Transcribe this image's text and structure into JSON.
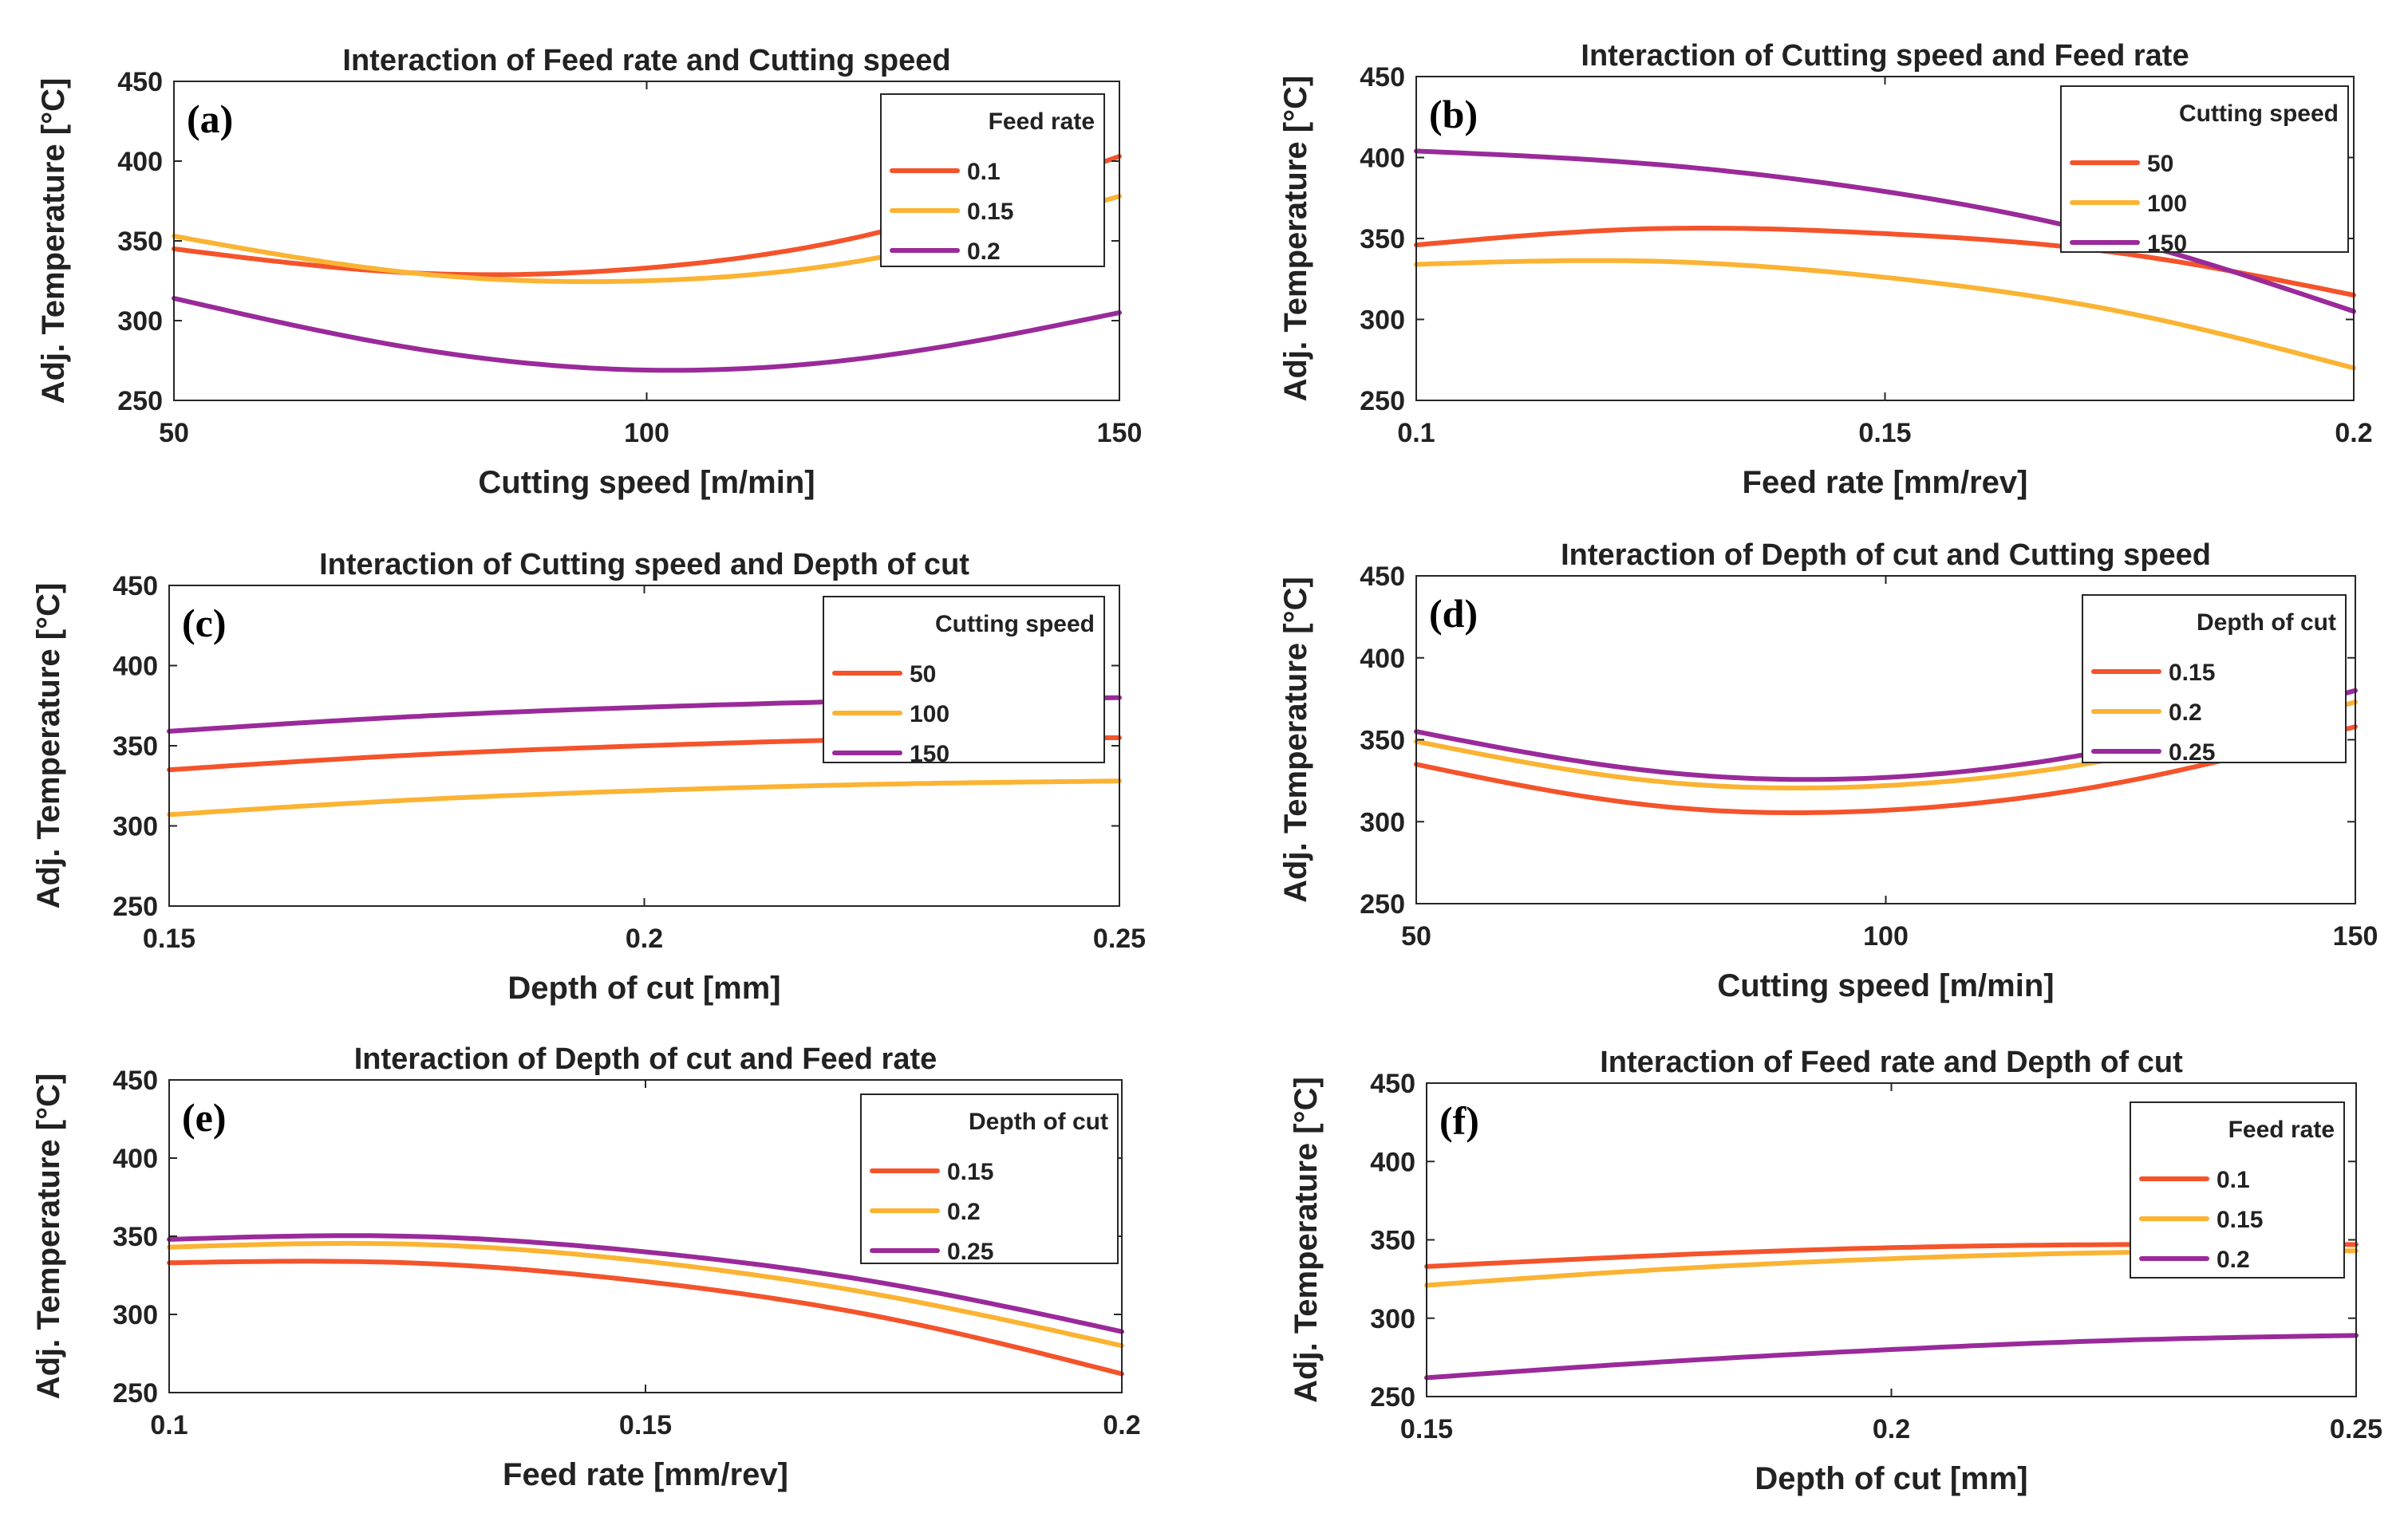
{
  "colors": {
    "series1": "#F4532B",
    "series2": "#FBB333",
    "series3": "#9A2A9A",
    "axis": "#262626"
  },
  "chart_data": [
    {
      "type": "line",
      "panel": "(a)",
      "title": "Interaction of Feed rate and Cutting speed",
      "xlabel": "Cutting speed [m/min]",
      "ylabel": "Adj. Temperature [°C]",
      "xlim": [
        50,
        150
      ],
      "ylim": [
        250,
        450
      ],
      "xticks": [
        50,
        100,
        150
      ],
      "xtick_labels": [
        "50",
        "100",
        "150"
      ],
      "yticks": [
        250,
        300,
        350,
        400,
        450
      ],
      "ytick_labels": [
        "250",
        "300",
        "350",
        "400",
        "450"
      ],
      "legend_title": "Feed rate",
      "legend_position": "top-right",
      "series": [
        {
          "name": "0.1",
          "x": [
            50,
            75,
            100,
            125,
            150
          ],
          "values": [
            345,
            330,
            333,
            356,
            403
          ]
        },
        {
          "name": "0.15",
          "x": [
            50,
            75,
            100,
            125,
            150
          ],
          "values": [
            353,
            330,
            325,
            340,
            378
          ]
        },
        {
          "name": "0.2",
          "x": [
            50,
            75,
            100,
            125,
            150
          ],
          "values": [
            314,
            283,
            269,
            278,
            305
          ]
        }
      ]
    },
    {
      "type": "line",
      "panel": "(b)",
      "title": "Interaction of Cutting speed and Feed rate",
      "xlabel": "Feed rate [mm/rev]",
      "ylabel": "Adj. Temperature [°C]",
      "xlim": [
        0.1,
        0.2
      ],
      "ylim": [
        250,
        450
      ],
      "xticks": [
        0.1,
        0.15,
        0.2
      ],
      "xtick_labels": [
        "0.1",
        "0.15",
        "0.2"
      ],
      "yticks": [
        250,
        300,
        350,
        400,
        450
      ],
      "ytick_labels": [
        "250",
        "300",
        "350",
        "400",
        "450"
      ],
      "legend_title": "Cutting speed",
      "legend_position": "top-right",
      "series": [
        {
          "name": "50",
          "x": [
            0.1,
            0.125,
            0.15,
            0.175,
            0.2
          ],
          "values": [
            346,
            356,
            353,
            341,
            315
          ]
        },
        {
          "name": "100",
          "x": [
            0.1,
            0.125,
            0.15,
            0.175,
            0.2
          ],
          "values": [
            334,
            336,
            326,
            305,
            270
          ]
        },
        {
          "name": "150",
          "x": [
            0.1,
            0.125,
            0.15,
            0.175,
            0.2
          ],
          "values": [
            404,
            396,
            379,
            350,
            305
          ]
        }
      ]
    },
    {
      "type": "line",
      "panel": "(c)",
      "title": "Interaction of Cutting speed and Depth of cut",
      "xlabel": "Depth of cut [mm]",
      "ylabel": "Adj. Temperature [°C]",
      "xlim": [
        0.15,
        0.25
      ],
      "ylim": [
        250,
        450
      ],
      "xticks": [
        0.15,
        0.2,
        0.25
      ],
      "xtick_labels": [
        "0.15",
        "0.2",
        "0.25"
      ],
      "yticks": [
        250,
        300,
        350,
        400,
        450
      ],
      "ytick_labels": [
        "250",
        "300",
        "350",
        "400",
        "450"
      ],
      "legend_title": "Cutting speed",
      "legend_position": "top-right",
      "series": [
        {
          "name": "50",
          "x": [
            0.15,
            0.175,
            0.2,
            0.225,
            0.25
          ],
          "values": [
            335,
            344,
            350,
            354,
            355
          ]
        },
        {
          "name": "100",
          "x": [
            0.15,
            0.175,
            0.2,
            0.225,
            0.25
          ],
          "values": [
            307,
            316,
            322,
            326,
            328
          ]
        },
        {
          "name": "150",
          "x": [
            0.15,
            0.175,
            0.2,
            0.225,
            0.25
          ],
          "values": [
            359,
            368,
            374,
            378,
            380
          ]
        }
      ]
    },
    {
      "type": "line",
      "panel": "(d)",
      "title": "Interaction of Depth of cut and Cutting speed",
      "xlabel": "Cutting speed [m/min]",
      "ylabel": "Adj. Temperature [°C]",
      "xlim": [
        50,
        150
      ],
      "ylim": [
        250,
        450
      ],
      "xticks": [
        50,
        100,
        150
      ],
      "xtick_labels": [
        "50",
        "100",
        "150"
      ],
      "yticks": [
        250,
        300,
        350,
        400,
        450
      ],
      "ytick_labels": [
        "250",
        "300",
        "350",
        "400",
        "450"
      ],
      "legend_title": "Depth of cut",
      "legend_position": "top-right",
      "series": [
        {
          "name": "0.15",
          "x": [
            50,
            75,
            100,
            125,
            150
          ],
          "values": [
            335,
            310,
            307,
            324,
            358
          ]
        },
        {
          "name": "0.2",
          "x": [
            50,
            75,
            100,
            125,
            150
          ],
          "values": [
            349,
            325,
            322,
            339,
            373
          ]
        },
        {
          "name": "0.25",
          "x": [
            50,
            75,
            100,
            125,
            150
          ],
          "values": [
            355,
            331,
            327,
            345,
            380
          ]
        }
      ]
    },
    {
      "type": "line",
      "panel": "(e)",
      "title": "Interaction of Depth of cut and Feed rate",
      "xlabel": "Feed rate [mm/rev]",
      "ylabel": "Adj. Temperature [°C]",
      "xlim": [
        0.1,
        0.2
      ],
      "ylim": [
        250,
        450
      ],
      "xticks": [
        0.1,
        0.15,
        0.2
      ],
      "xtick_labels": [
        "0.1",
        "0.15",
        "0.2"
      ],
      "yticks": [
        250,
        300,
        350,
        400,
        450
      ],
      "ytick_labels": [
        "250",
        "300",
        "350",
        "400",
        "450"
      ],
      "legend_title": "Depth of cut",
      "legend_position": "top-right",
      "series": [
        {
          "name": "0.15",
          "x": [
            0.1,
            0.125,
            0.15,
            0.175,
            0.2
          ],
          "values": [
            333,
            333,
            321,
            298,
            262
          ]
        },
        {
          "name": "0.2",
          "x": [
            0.1,
            0.125,
            0.15,
            0.175,
            0.2
          ],
          "values": [
            343,
            345,
            334,
            312,
            280
          ]
        },
        {
          "name": "0.25",
          "x": [
            0.1,
            0.125,
            0.15,
            0.175,
            0.2
          ],
          "values": [
            348,
            350,
            340,
            320,
            289
          ]
        }
      ]
    },
    {
      "type": "line",
      "panel": "(f)",
      "title": "Interaction of Feed rate and Depth of cut",
      "xlabel": "Depth of cut [mm]",
      "ylabel": "Adj. Temperature [°C]",
      "xlim": [
        0.15,
        0.25
      ],
      "ylim": [
        250,
        450
      ],
      "xticks": [
        0.15,
        0.2,
        0.25
      ],
      "xtick_labels": [
        "0.15",
        "0.2",
        "0.25"
      ],
      "yticks": [
        250,
        300,
        350,
        400,
        450
      ],
      "ytick_labels": [
        "250",
        "300",
        "350",
        "400",
        "450"
      ],
      "legend_title": "Feed rate",
      "legend_position": "top-right",
      "series": [
        {
          "name": "0.1",
          "x": [
            0.15,
            0.175,
            0.2,
            0.225,
            0.25
          ],
          "values": [
            333,
            340,
            345,
            347,
            347
          ]
        },
        {
          "name": "0.15",
          "x": [
            0.15,
            0.175,
            0.2,
            0.225,
            0.25
          ],
          "values": [
            321,
            331,
            338,
            342,
            343
          ]
        },
        {
          "name": "0.2",
          "x": [
            0.15,
            0.175,
            0.2,
            0.225,
            0.25
          ],
          "values": [
            262,
            272,
            280,
            286,
            289
          ]
        }
      ]
    }
  ]
}
